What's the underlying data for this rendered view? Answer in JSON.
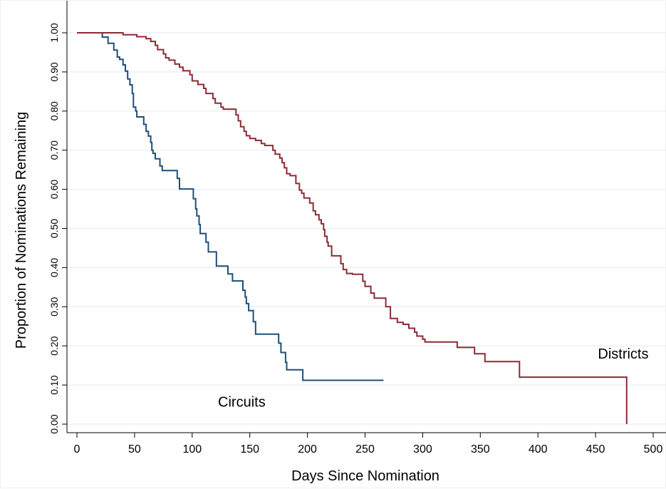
{
  "chart_data": {
    "type": "line",
    "title": "",
    "xlabel": "Days Since Nomination",
    "ylabel": "Proportion of Nominations Remaining",
    "xlim": [
      0,
      500
    ],
    "ylim": [
      0,
      1
    ],
    "xticks": [
      "0",
      "50",
      "100",
      "150",
      "200",
      "250",
      "300",
      "350",
      "400",
      "450",
      "500"
    ],
    "yticks": [
      "0.00",
      "0.10",
      "0.20",
      "0.30",
      "0.40",
      "0.50",
      "0.60",
      "0.70",
      "0.80",
      "0.90",
      "1.00"
    ],
    "grid": "horizontal",
    "legend": "none",
    "step": true,
    "series": [
      {
        "name": "Circuits",
        "color": "#1f4e79",
        "label_pos": [
          143,
          0.045
        ],
        "points": [
          [
            0,
            1.0
          ],
          [
            22,
            1.0
          ],
          [
            22,
            0.989
          ],
          [
            27,
            0.989
          ],
          [
            27,
            0.973
          ],
          [
            32,
            0.973
          ],
          [
            32,
            0.956
          ],
          [
            35,
            0.956
          ],
          [
            35,
            0.938
          ],
          [
            37,
            0.938
          ],
          [
            37,
            0.932
          ],
          [
            40,
            0.932
          ],
          [
            40,
            0.918
          ],
          [
            42,
            0.918
          ],
          [
            42,
            0.902
          ],
          [
            44,
            0.902
          ],
          [
            44,
            0.882
          ],
          [
            46,
            0.882
          ],
          [
            46,
            0.867
          ],
          [
            48,
            0.867
          ],
          [
            48,
            0.845
          ],
          [
            49,
            0.845
          ],
          [
            49,
            0.81
          ],
          [
            51,
            0.81
          ],
          [
            51,
            0.8
          ],
          [
            52,
            0.8
          ],
          [
            52,
            0.785
          ],
          [
            58,
            0.785
          ],
          [
            58,
            0.766
          ],
          [
            60,
            0.766
          ],
          [
            60,
            0.748
          ],
          [
            62,
            0.748
          ],
          [
            62,
            0.736
          ],
          [
            64,
            0.736
          ],
          [
            64,
            0.72
          ],
          [
            65,
            0.72
          ],
          [
            65,
            0.7
          ],
          [
            66,
            0.7
          ],
          [
            66,
            0.692
          ],
          [
            68,
            0.692
          ],
          [
            68,
            0.678
          ],
          [
            72,
            0.678
          ],
          [
            72,
            0.66
          ],
          [
            74,
            0.66
          ],
          [
            74,
            0.648
          ],
          [
            87,
            0.648
          ],
          [
            87,
            0.628
          ],
          [
            89,
            0.628
          ],
          [
            89,
            0.601
          ],
          [
            101,
            0.601
          ],
          [
            101,
            0.576
          ],
          [
            103,
            0.576
          ],
          [
            103,
            0.55
          ],
          [
            104,
            0.55
          ],
          [
            104,
            0.532
          ],
          [
            106,
            0.532
          ],
          [
            106,
            0.51
          ],
          [
            107,
            0.51
          ],
          [
            107,
            0.487
          ],
          [
            112,
            0.487
          ],
          [
            112,
            0.465
          ],
          [
            114,
            0.465
          ],
          [
            114,
            0.44
          ],
          [
            121,
            0.44
          ],
          [
            121,
            0.404
          ],
          [
            131,
            0.404
          ],
          [
            131,
            0.384
          ],
          [
            135,
            0.384
          ],
          [
            135,
            0.366
          ],
          [
            144,
            0.366
          ],
          [
            144,
            0.342
          ],
          [
            146,
            0.342
          ],
          [
            146,
            0.325
          ],
          [
            147,
            0.325
          ],
          [
            147,
            0.308
          ],
          [
            149,
            0.308
          ],
          [
            149,
            0.29
          ],
          [
            153,
            0.29
          ],
          [
            153,
            0.262
          ],
          [
            155,
            0.262
          ],
          [
            155,
            0.23
          ],
          [
            175,
            0.23
          ],
          [
            175,
            0.207
          ],
          [
            177,
            0.207
          ],
          [
            177,
            0.183
          ],
          [
            181,
            0.183
          ],
          [
            181,
            0.158
          ],
          [
            182,
            0.158
          ],
          [
            182,
            0.139
          ],
          [
            196,
            0.139
          ],
          [
            196,
            0.112
          ],
          [
            266,
            0.112
          ]
        ]
      },
      {
        "name": "Districts",
        "color": "#8b2c35",
        "label_pos": [
          474,
          0.168
        ],
        "points": [
          [
            0,
            1.0
          ],
          [
            40,
            1.0
          ],
          [
            40,
            0.995
          ],
          [
            52,
            0.995
          ],
          [
            52,
            0.99
          ],
          [
            60,
            0.99
          ],
          [
            60,
            0.985
          ],
          [
            64,
            0.985
          ],
          [
            64,
            0.978
          ],
          [
            68,
            0.978
          ],
          [
            68,
            0.968
          ],
          [
            70,
            0.968
          ],
          [
            70,
            0.957
          ],
          [
            75,
            0.957
          ],
          [
            75,
            0.946
          ],
          [
            77,
            0.946
          ],
          [
            77,
            0.936
          ],
          [
            80,
            0.936
          ],
          [
            80,
            0.93
          ],
          [
            85,
            0.93
          ],
          [
            85,
            0.92
          ],
          [
            89,
            0.92
          ],
          [
            89,
            0.912
          ],
          [
            92,
            0.912
          ],
          [
            92,
            0.903
          ],
          [
            98,
            0.903
          ],
          [
            98,
            0.893
          ],
          [
            100,
            0.893
          ],
          [
            100,
            0.877
          ],
          [
            105,
            0.877
          ],
          [
            105,
            0.868
          ],
          [
            110,
            0.868
          ],
          [
            110,
            0.858
          ],
          [
            112,
            0.858
          ],
          [
            112,
            0.845
          ],
          [
            118,
            0.845
          ],
          [
            118,
            0.832
          ],
          [
            120,
            0.832
          ],
          [
            120,
            0.82
          ],
          [
            125,
            0.82
          ],
          [
            125,
            0.81
          ],
          [
            127,
            0.81
          ],
          [
            127,
            0.805
          ],
          [
            138,
            0.805
          ],
          [
            138,
            0.79
          ],
          [
            140,
            0.79
          ],
          [
            140,
            0.775
          ],
          [
            142,
            0.775
          ],
          [
            142,
            0.76
          ],
          [
            145,
            0.76
          ],
          [
            145,
            0.748
          ],
          [
            147,
            0.748
          ],
          [
            147,
            0.737
          ],
          [
            150,
            0.737
          ],
          [
            150,
            0.73
          ],
          [
            155,
            0.73
          ],
          [
            155,
            0.725
          ],
          [
            160,
            0.725
          ],
          [
            160,
            0.717
          ],
          [
            163,
            0.717
          ],
          [
            163,
            0.712
          ],
          [
            170,
            0.712
          ],
          [
            170,
            0.7
          ],
          [
            172,
            0.7
          ],
          [
            172,
            0.69
          ],
          [
            176,
            0.69
          ],
          [
            176,
            0.68
          ],
          [
            178,
            0.68
          ],
          [
            178,
            0.668
          ],
          [
            180,
            0.668
          ],
          [
            180,
            0.655
          ],
          [
            182,
            0.655
          ],
          [
            182,
            0.64
          ],
          [
            185,
            0.64
          ],
          [
            185,
            0.635
          ],
          [
            190,
            0.635
          ],
          [
            190,
            0.615
          ],
          [
            193,
            0.615
          ],
          [
            193,
            0.598
          ],
          [
            195,
            0.598
          ],
          [
            195,
            0.59
          ],
          [
            197,
            0.59
          ],
          [
            197,
            0.578
          ],
          [
            202,
            0.578
          ],
          [
            202,
            0.565
          ],
          [
            205,
            0.565
          ],
          [
            205,
            0.545
          ],
          [
            207,
            0.545
          ],
          [
            207,
            0.535
          ],
          [
            210,
            0.535
          ],
          [
            210,
            0.522
          ],
          [
            212,
            0.522
          ],
          [
            212,
            0.512
          ],
          [
            214,
            0.512
          ],
          [
            214,
            0.497
          ],
          [
            215,
            0.497
          ],
          [
            215,
            0.48
          ],
          [
            217,
            0.48
          ],
          [
            217,
            0.465
          ],
          [
            218,
            0.465
          ],
          [
            218,
            0.455
          ],
          [
            221,
            0.455
          ],
          [
            221,
            0.43
          ],
          [
            229,
            0.43
          ],
          [
            229,
            0.41
          ],
          [
            231,
            0.41
          ],
          [
            231,
            0.395
          ],
          [
            234,
            0.395
          ],
          [
            234,
            0.385
          ],
          [
            239,
            0.385
          ],
          [
            239,
            0.383
          ],
          [
            248,
            0.383
          ],
          [
            248,
            0.365
          ],
          [
            250,
            0.365
          ],
          [
            250,
            0.352
          ],
          [
            255,
            0.352
          ],
          [
            255,
            0.335
          ],
          [
            258,
            0.335
          ],
          [
            258,
            0.322
          ],
          [
            268,
            0.322
          ],
          [
            268,
            0.3
          ],
          [
            272,
            0.3
          ],
          [
            272,
            0.27
          ],
          [
            278,
            0.27
          ],
          [
            278,
            0.26
          ],
          [
            283,
            0.26
          ],
          [
            283,
            0.255
          ],
          [
            288,
            0.255
          ],
          [
            288,
            0.245
          ],
          [
            293,
            0.245
          ],
          [
            293,
            0.235
          ],
          [
            295,
            0.235
          ],
          [
            295,
            0.225
          ],
          [
            300,
            0.225
          ],
          [
            300,
            0.217
          ],
          [
            302,
            0.217
          ],
          [
            302,
            0.21
          ],
          [
            330,
            0.21
          ],
          [
            330,
            0.196
          ],
          [
            345,
            0.196
          ],
          [
            345,
            0.18
          ],
          [
            354,
            0.18
          ],
          [
            354,
            0.16
          ],
          [
            384,
            0.16
          ],
          [
            384,
            0.12
          ],
          [
            477,
            0.12
          ],
          [
            477,
            0.0
          ]
        ]
      }
    ]
  }
}
